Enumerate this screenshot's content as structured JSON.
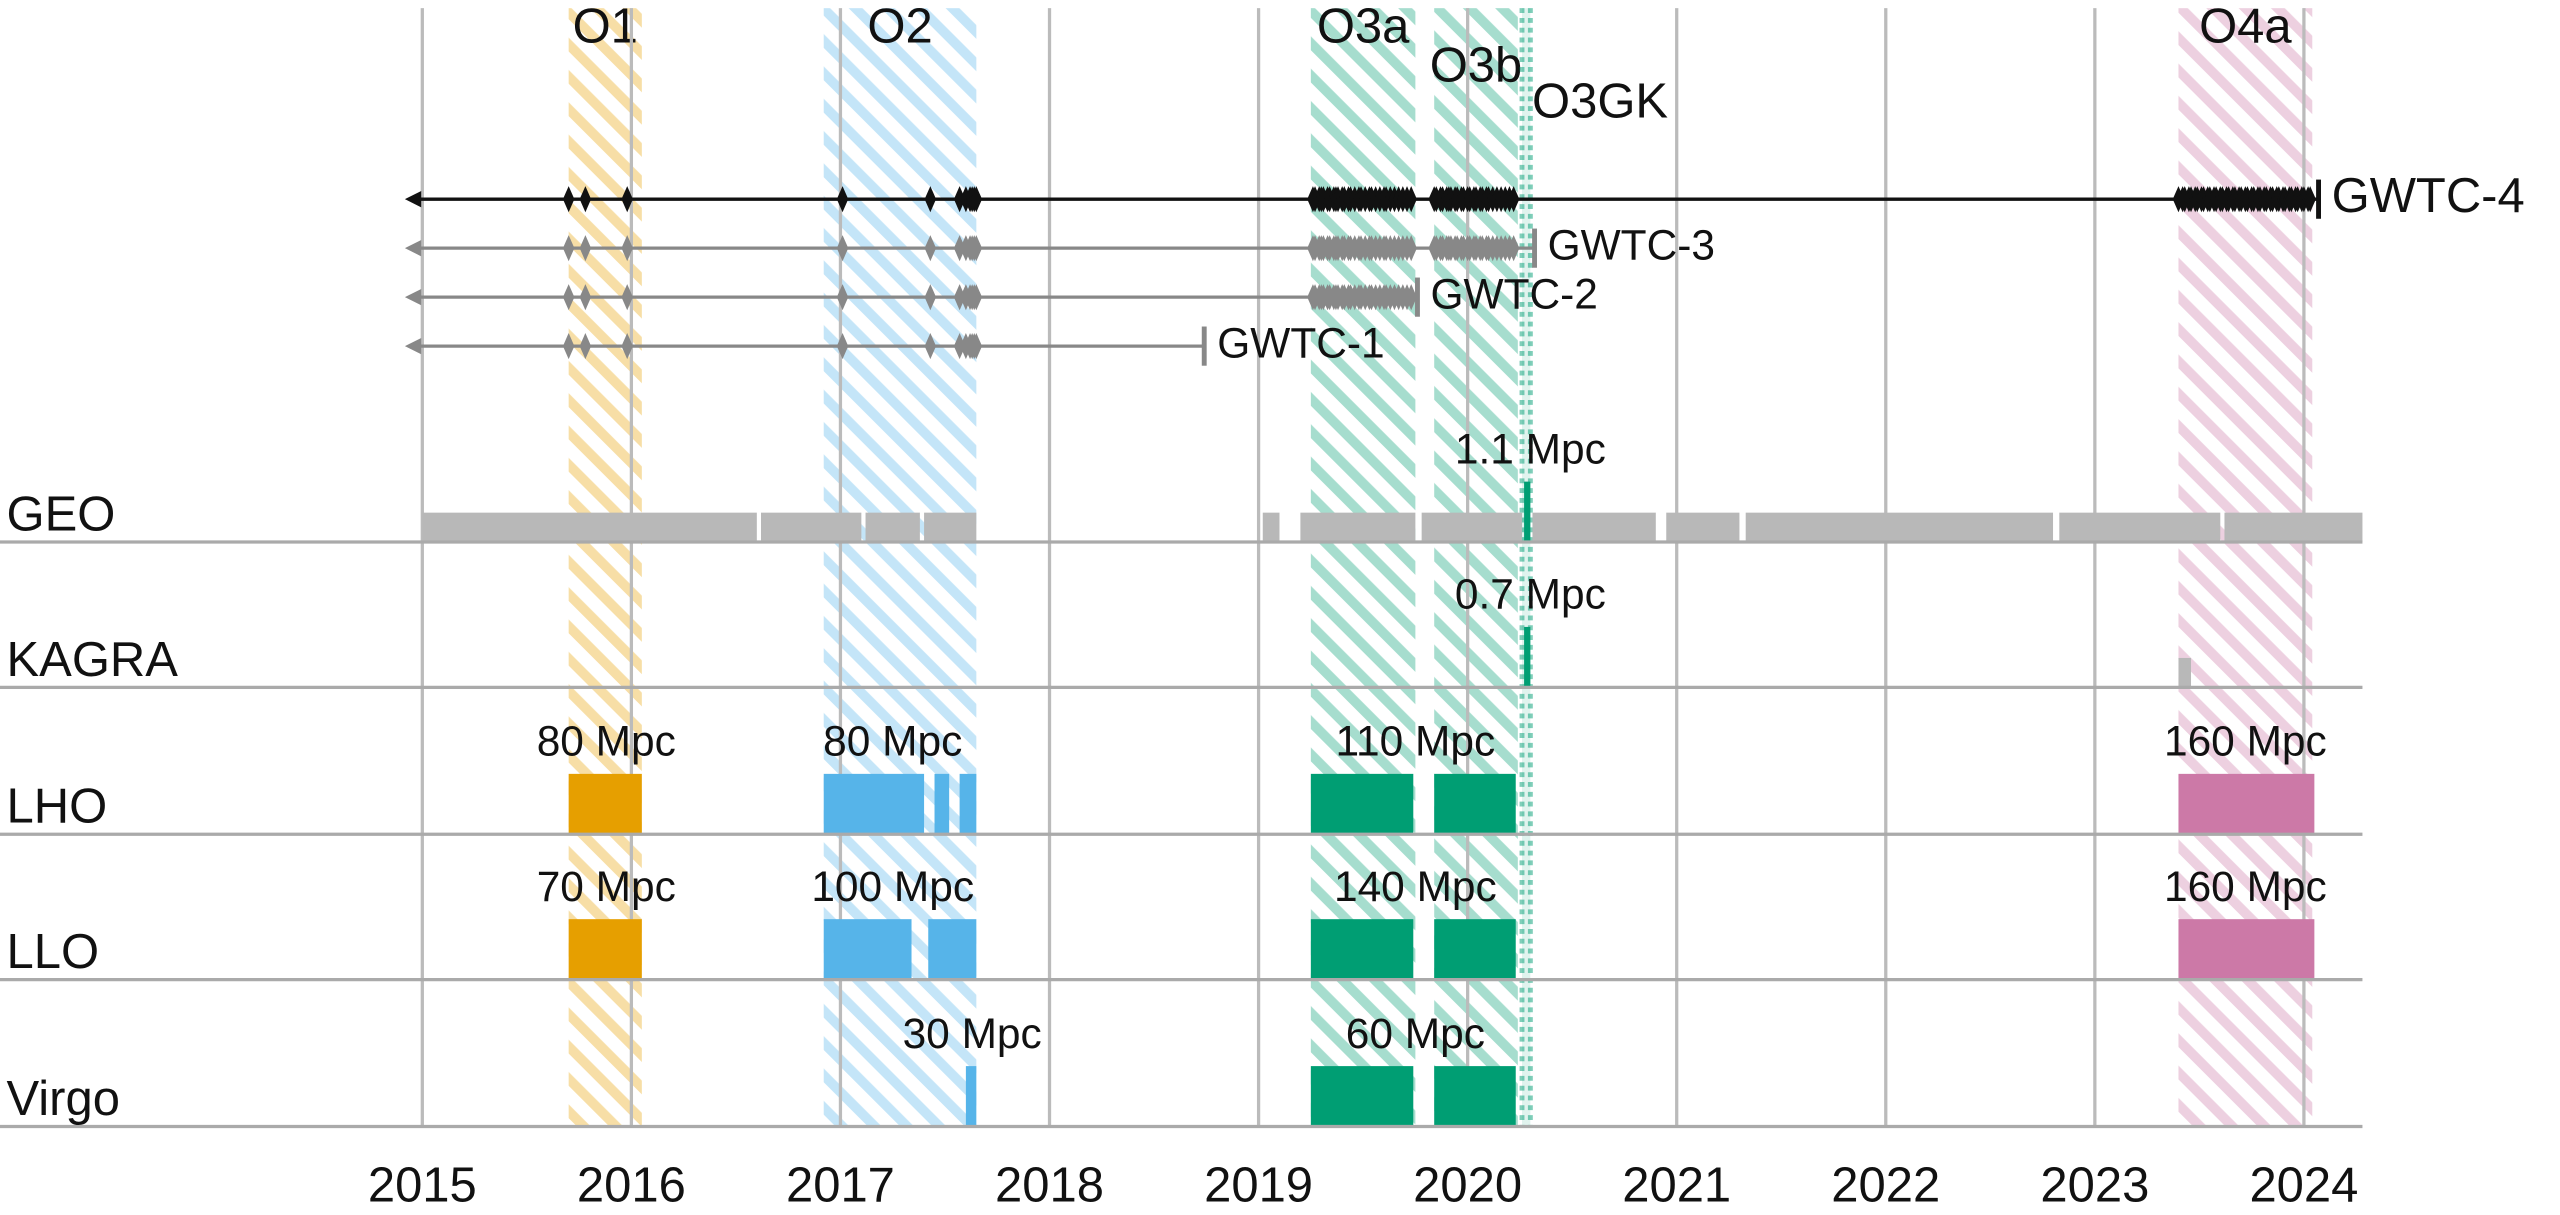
{
  "chart_data": {
    "type": "timeline",
    "xlim": [
      2012.98,
      2024.28
    ],
    "xticks": [
      2015,
      2016,
      2017,
      2018,
      2019,
      2020,
      2021,
      2022,
      2023,
      2024
    ],
    "grid": true,
    "gray_color": "#b8b8b8",
    "runs": [
      {
        "name": "O1",
        "start": 2015.7,
        "end": 2016.05,
        "color": "#e69f00",
        "hatched": true
      },
      {
        "name": "O2",
        "start": 2016.92,
        "end": 2017.65,
        "color": "#56b4e9",
        "hatched": true
      },
      {
        "name": "O3a",
        "start": 2019.25,
        "end": 2019.75,
        "color": "#009e73",
        "hatched": true
      },
      {
        "name": "O3b",
        "start": 2019.84,
        "end": 2020.24,
        "color": "#009e73",
        "hatched": true
      },
      {
        "name": "O3GK",
        "start": 2020.26,
        "end": 2020.3,
        "color": "#009e73",
        "hatched": false
      },
      {
        "name": "O4a",
        "start": 2023.4,
        "end": 2024.04,
        "color": "#cc79a7",
        "hatched": true
      }
    ],
    "events": [
      2015.7,
      2015.78,
      2015.98,
      2017.01,
      2017.43,
      2017.57,
      2017.6,
      2017.62,
      2017.63,
      2017.64,
      2017.65,
      2019.26,
      2019.27,
      2019.29,
      2019.3,
      2019.31,
      2019.33,
      2019.34,
      2019.36,
      2019.37,
      2019.38,
      2019.4,
      2019.41,
      2019.43,
      2019.44,
      2019.46,
      2019.48,
      2019.49,
      2019.51,
      2019.53,
      2019.54,
      2019.56,
      2019.58,
      2019.6,
      2019.61,
      2019.63,
      2019.65,
      2019.67,
      2019.69,
      2019.71,
      2019.73,
      2019.84,
      2019.85,
      2019.87,
      2019.88,
      2019.9,
      2019.91,
      2019.92,
      2019.94,
      2019.95,
      2019.97,
      2019.98,
      2020.0,
      2020.01,
      2020.03,
      2020.04,
      2020.06,
      2020.07,
      2020.09,
      2020.1,
      2020.12,
      2020.14,
      2020.16,
      2020.18,
      2020.2,
      2020.22,
      2023.4,
      2023.42,
      2023.43,
      2023.45,
      2023.46,
      2023.48,
      2023.49,
      2023.51,
      2023.52,
      2023.54,
      2023.55,
      2023.57,
      2023.58,
      2023.6,
      2023.61,
      2023.63,
      2023.64,
      2023.66,
      2023.67,
      2023.69,
      2023.7,
      2023.72,
      2023.73,
      2023.75,
      2023.76,
      2023.78,
      2023.79,
      2023.81,
      2023.82,
      2023.84,
      2023.85,
      2023.87,
      2023.88,
      2023.9,
      2023.91,
      2023.93,
      2023.94,
      2023.96,
      2023.97,
      2023.99,
      2024.0,
      2024.02,
      2024.03
    ],
    "catalogs": [
      {
        "name": "GWTC-4",
        "end": 2024.07,
        "color": "#111111"
      },
      {
        "name": "GWTC-3",
        "end": 2020.32,
        "color": "#888888"
      },
      {
        "name": "GWTC-2",
        "end": 2019.76,
        "color": "#888888"
      },
      {
        "name": "GWTC-1",
        "end": 2018.74,
        "color": "#888888"
      }
    ],
    "detectors": [
      {
        "name": "GEO",
        "segments": [
          {
            "start": 2015.0,
            "end": 2016.6,
            "color": "#b8b8b8"
          },
          {
            "start": 2016.62,
            "end": 2017.1,
            "color": "#b8b8b8"
          },
          {
            "start": 2017.12,
            "end": 2017.38,
            "color": "#b8b8b8"
          },
          {
            "start": 2017.4,
            "end": 2017.65,
            "color": "#b8b8b8"
          },
          {
            "start": 2019.02,
            "end": 2019.1,
            "color": "#b8b8b8"
          },
          {
            "start": 2019.2,
            "end": 2019.75,
            "color": "#b8b8b8"
          },
          {
            "start": 2019.78,
            "end": 2020.26,
            "color": "#b8b8b8"
          },
          {
            "start": 2020.31,
            "end": 2020.9,
            "color": "#b8b8b8"
          },
          {
            "start": 2020.95,
            "end": 2021.3,
            "color": "#b8b8b8"
          },
          {
            "start": 2021.33,
            "end": 2022.8,
            "color": "#b8b8b8"
          },
          {
            "start": 2022.83,
            "end": 2023.6,
            "color": "#b8b8b8"
          },
          {
            "start": 2023.62,
            "end": 2024.28,
            "color": "#b8b8b8"
          },
          {
            "start": 2020.27,
            "end": 2020.3,
            "color": "#009e73"
          }
        ],
        "range_at": [
          2020.3
        ],
        "values": [
          1.1
        ],
        "value_labels": [
          "1.1 Mpc"
        ]
      },
      {
        "name": "KAGRA",
        "segments": [
          {
            "start": 2020.27,
            "end": 2020.3,
            "color": "#009e73"
          },
          {
            "start": 2023.4,
            "end": 2023.46,
            "color": "#b8b8b8"
          }
        ],
        "range_at": [
          2020.3
        ],
        "values": [
          0.7
        ],
        "value_labels": [
          "0.7 Mpc"
        ]
      },
      {
        "name": "LHO",
        "segments": [
          {
            "start": 2015.7,
            "end": 2016.05,
            "color": "#e69f00"
          },
          {
            "start": 2016.92,
            "end": 2017.4,
            "color": "#56b4e9"
          },
          {
            "start": 2017.45,
            "end": 2017.52,
            "color": "#56b4e9"
          },
          {
            "start": 2017.57,
            "end": 2017.65,
            "color": "#56b4e9"
          },
          {
            "start": 2019.25,
            "end": 2019.74,
            "color": "#009e73"
          },
          {
            "start": 2019.84,
            "end": 2020.23,
            "color": "#009e73"
          },
          {
            "start": 2023.4,
            "end": 2024.05,
            "color": "#cc79a7"
          }
        ],
        "range_at": [
          2015.88,
          2017.25,
          2019.75,
          2023.72
        ],
        "values": [
          80,
          80,
          110,
          160
        ],
        "value_labels": [
          "80 Mpc",
          "80 Mpc",
          "110 Mpc",
          "160 Mpc"
        ]
      },
      {
        "name": "LLO",
        "segments": [
          {
            "start": 2015.7,
            "end": 2016.05,
            "color": "#e69f00"
          },
          {
            "start": 2016.92,
            "end": 2017.34,
            "color": "#56b4e9"
          },
          {
            "start": 2017.42,
            "end": 2017.65,
            "color": "#56b4e9"
          },
          {
            "start": 2019.25,
            "end": 2019.74,
            "color": "#009e73"
          },
          {
            "start": 2019.84,
            "end": 2020.23,
            "color": "#009e73"
          },
          {
            "start": 2023.4,
            "end": 2024.05,
            "color": "#cc79a7"
          }
        ],
        "range_at": [
          2015.88,
          2017.25,
          2019.75,
          2023.72
        ],
        "values": [
          70,
          100,
          140,
          160
        ],
        "value_labels": [
          "70 Mpc",
          "100 Mpc",
          "140 Mpc",
          "160 Mpc"
        ]
      },
      {
        "name": "Virgo",
        "segments": [
          {
            "start": 2017.6,
            "end": 2017.65,
            "color": "#56b4e9"
          },
          {
            "start": 2019.25,
            "end": 2019.74,
            "color": "#009e73"
          },
          {
            "start": 2019.84,
            "end": 2020.23,
            "color": "#009e73"
          }
        ],
        "range_at": [
          2017.63,
          2019.75
        ],
        "values": [
          30,
          60
        ],
        "value_labels": [
          "30 Mpc",
          "60 Mpc"
        ]
      }
    ]
  }
}
